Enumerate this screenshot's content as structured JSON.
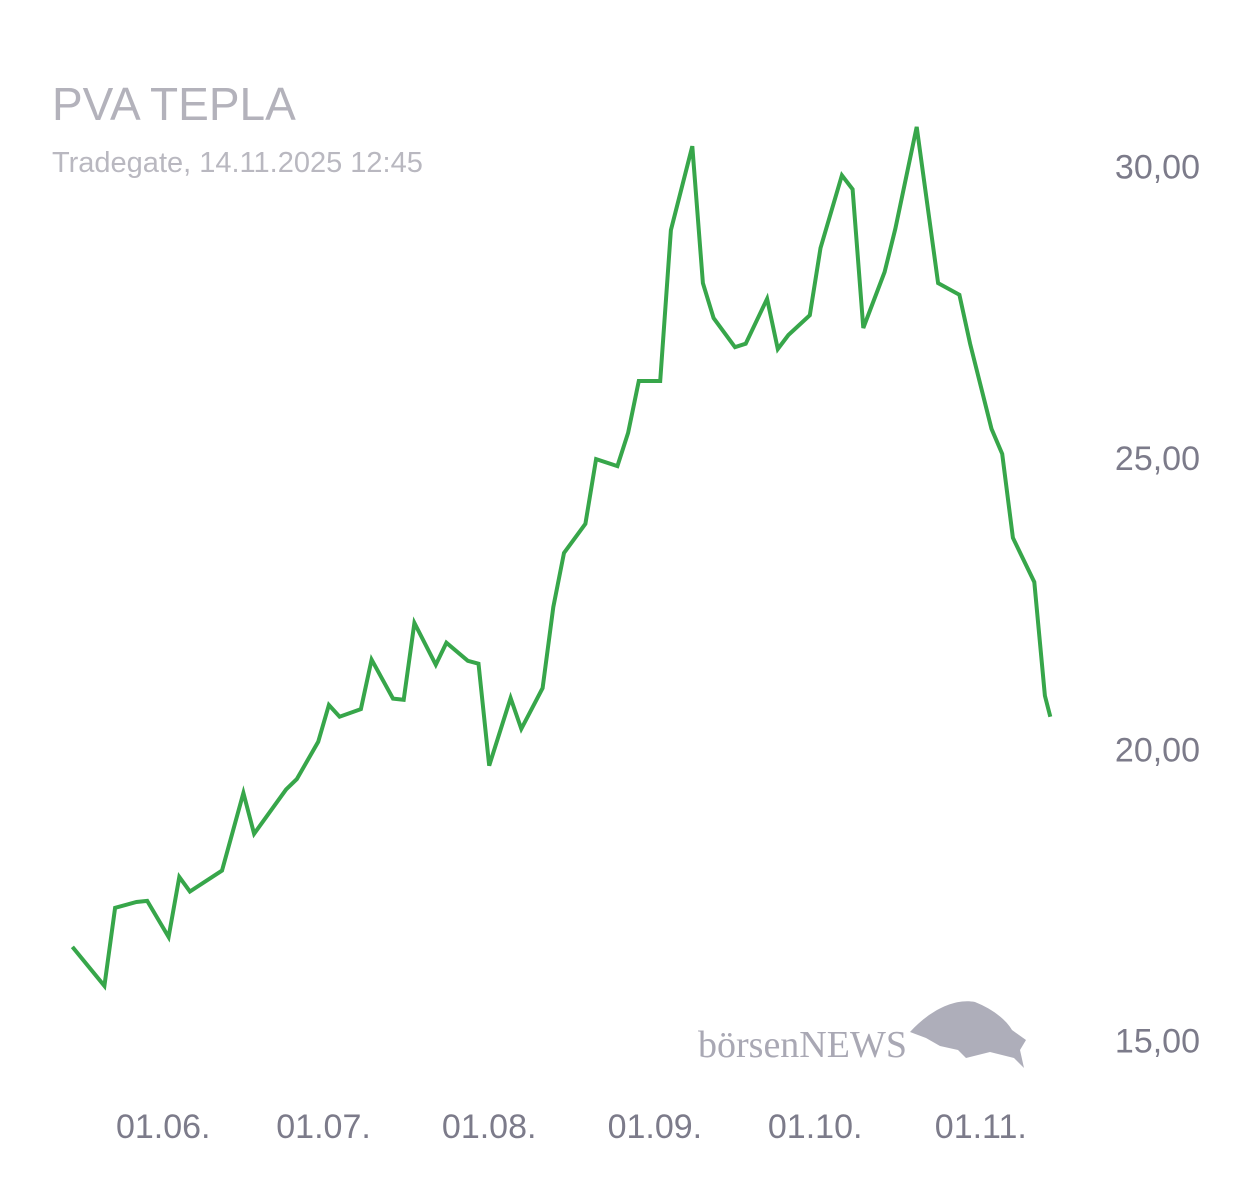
{
  "chart_data": {
    "type": "line",
    "title": "PVA TEPLA",
    "subtitle": "Tradegate, 14.11.2025 12:45",
    "watermark": "börsenNEWS",
    "color": "#37a64a",
    "grid": false,
    "x": [
      "15.05.",
      "21.05.",
      "23.05.",
      "27.05.",
      "29.05.",
      "02.06.",
      "04.06.",
      "06.06.",
      "12.06.",
      "16.06.",
      "18.06.",
      "24.06.",
      "26.06.",
      "30.06.",
      "02.07.",
      "04.07.",
      "08.07.",
      "10.07.",
      "14.07.",
      "16.07.",
      "18.07.",
      "22.07.",
      "24.07.",
      "28.07.",
      "30.07.",
      "01.08.",
      "05.08.",
      "07.08.",
      "11.08.",
      "13.08.",
      "15.08.",
      "19.08.",
      "21.08.",
      "25.08.",
      "27.08.",
      "29.08.",
      "02.09.",
      "04.09.",
      "08.09.",
      "10.09.",
      "12.09.",
      "16.09.",
      "18.09.",
      "22.09.",
      "24.09.",
      "26.09.",
      "30.09.",
      "02.10.",
      "06.10.",
      "08.10.",
      "10.10.",
      "14.10.",
      "16.10.",
      "20.10.",
      "22.10.",
      "24.10.",
      "28.10.",
      "30.10.",
      "03.11.",
      "05.11.",
      "07.11.",
      "11.11.",
      "13.11.",
      "14.11."
    ],
    "values": [
      16.61,
      15.94,
      17.28,
      17.38,
      17.4,
      16.78,
      17.81,
      17.56,
      17.92,
      19.25,
      18.55,
      19.31,
      19.49,
      20.13,
      20.76,
      20.56,
      20.69,
      21.54,
      20.87,
      20.85,
      22.17,
      21.45,
      21.83,
      21.52,
      21.47,
      19.72,
      20.88,
      20.35,
      21.05,
      22.44,
      23.37,
      23.87,
      24.98,
      24.86,
      25.43,
      26.32,
      26.32,
      28.91,
      30.35,
      28.0,
      27.4,
      26.9,
      26.96,
      27.73,
      26.87,
      27.11,
      27.45,
      28.6,
      29.85,
      29.61,
      27.23,
      28.19,
      28.93,
      30.68,
      29.34,
      28.0,
      27.8,
      26.96,
      25.5,
      25.07,
      23.63,
      22.87,
      20.92,
      20.56
    ],
    "xlim": [
      "11.05.",
      "19.11."
    ],
    "xticks": [
      "01.06.",
      "01.07.",
      "01.08.",
      "01.09.",
      "01.10.",
      "01.11."
    ],
    "ylim": [
      14,
      32
    ],
    "yticks": [
      {
        "value": 15,
        "label": "15,00"
      },
      {
        "value": 20,
        "label": "20,00"
      },
      {
        "value": 25,
        "label": "25,00"
      },
      {
        "value": 30,
        "label": "30,00"
      }
    ]
  }
}
